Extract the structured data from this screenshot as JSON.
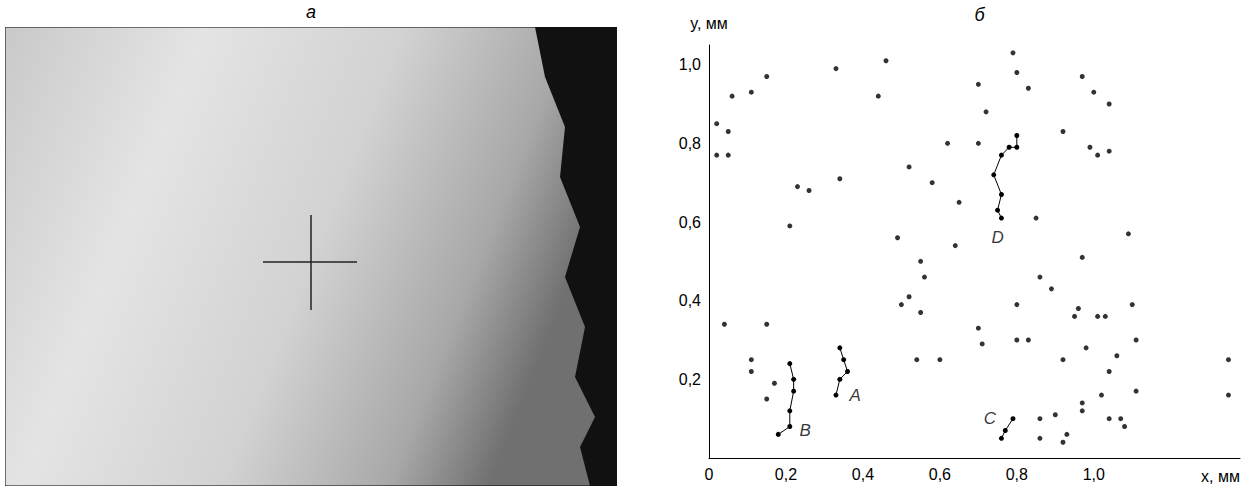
{
  "photo": {
    "title": "а"
  },
  "chart_data": {
    "type": "scatter",
    "title": "б",
    "xlabel": "x, мм",
    "ylabel": "y, мм",
    "xlim": [
      0,
      1.38
    ],
    "ylim": [
      0,
      1.05
    ],
    "xticks": [
      0,
      {
        "value": 0.2,
        "label": "0,2"
      },
      {
        "value": 0.4,
        "label": "0,4"
      },
      {
        "value": 0.6,
        "label": "0,6"
      },
      {
        "value": 0.8,
        "label": "0,8"
      },
      {
        "value": 1.0,
        "label": "1,0"
      }
    ],
    "yticks": [
      {
        "value": 0.2,
        "label": "0,2"
      },
      {
        "value": 0.4,
        "label": "0,4"
      },
      {
        "value": 0.6,
        "label": "0,6"
      },
      {
        "value": 0.8,
        "label": "0,8"
      },
      {
        "value": 1.0,
        "label": "1,0"
      }
    ],
    "grid": false,
    "color": "#000000",
    "marker": "circle",
    "points": [
      [
        0.02,
        0.85
      ],
      [
        0.06,
        0.92
      ],
      [
        0.05,
        0.83
      ],
      [
        0.02,
        0.77
      ],
      [
        0.05,
        0.77
      ],
      [
        0.11,
        0.93
      ],
      [
        0.15,
        0.97
      ],
      [
        0.33,
        0.99
      ],
      [
        0.44,
        0.92
      ],
      [
        0.46,
        1.01
      ],
      [
        0.34,
        0.71
      ],
      [
        0.23,
        0.69
      ],
      [
        0.26,
        0.68
      ],
      [
        0.21,
        0.59
      ],
      [
        0.04,
        0.34
      ],
      [
        0.15,
        0.34
      ],
      [
        0.11,
        0.25
      ],
      [
        0.11,
        0.22
      ],
      [
        0.17,
        0.19
      ],
      [
        0.15,
        0.15
      ],
      [
        0.49,
        0.56
      ],
      [
        0.52,
        0.74
      ],
      [
        0.58,
        0.7
      ],
      [
        0.62,
        0.8
      ],
      [
        0.65,
        0.65
      ],
      [
        0.64,
        0.54
      ],
      [
        0.55,
        0.5
      ],
      [
        0.56,
        0.46
      ],
      [
        0.52,
        0.41
      ],
      [
        0.5,
        0.39
      ],
      [
        0.55,
        0.37
      ],
      [
        0.54,
        0.25
      ],
      [
        0.6,
        0.25
      ],
      [
        0.7,
        0.33
      ],
      [
        0.71,
        0.29
      ],
      [
        0.7,
        0.95
      ],
      [
        0.72,
        0.88
      ],
      [
        0.7,
        0.8
      ],
      [
        0.79,
        1.03
      ],
      [
        0.8,
        0.98
      ],
      [
        0.83,
        0.94
      ],
      [
        0.85,
        0.61
      ],
      [
        0.86,
        0.46
      ],
      [
        0.89,
        0.43
      ],
      [
        0.8,
        0.39
      ],
      [
        0.8,
        0.3
      ],
      [
        0.83,
        0.3
      ],
      [
        0.92,
        0.83
      ],
      [
        0.97,
        0.97
      ],
      [
        1.0,
        0.93
      ],
      [
        1.04,
        0.9
      ],
      [
        0.99,
        0.79
      ],
      [
        1.01,
        0.77
      ],
      [
        1.04,
        0.78
      ],
      [
        0.97,
        0.51
      ],
      [
        1.09,
        0.57
      ],
      [
        0.96,
        0.38
      ],
      [
        0.95,
        0.36
      ],
      [
        0.98,
        0.28
      ],
      [
        1.01,
        0.36
      ],
      [
        1.03,
        0.36
      ],
      [
        1.06,
        0.26
      ],
      [
        1.04,
        0.22
      ],
      [
        1.1,
        0.39
      ],
      [
        1.11,
        0.3
      ],
      [
        0.92,
        0.25
      ],
      [
        0.97,
        0.14
      ],
      [
        0.97,
        0.12
      ],
      [
        1.02,
        0.16
      ],
      [
        1.04,
        0.1
      ],
      [
        1.07,
        0.1
      ],
      [
        1.08,
        0.08
      ],
      [
        1.11,
        0.17
      ],
      [
        0.86,
        0.1
      ],
      [
        0.9,
        0.11
      ],
      [
        0.86,
        0.05
      ],
      [
        0.92,
        0.04
      ],
      [
        0.93,
        0.06
      ],
      [
        1.35,
        0.25
      ],
      [
        1.35,
        0.16
      ]
    ],
    "series": [
      {
        "type": "line",
        "marker": "circle",
        "values": [
          [
            0.33,
            0.16
          ],
          [
            0.34,
            0.2
          ],
          [
            0.36,
            0.22
          ],
          [
            0.35,
            0.25
          ],
          [
            0.34,
            0.28
          ]
        ]
      },
      {
        "type": "line",
        "marker": "circle",
        "values": [
          [
            0.18,
            0.06
          ],
          [
            0.21,
            0.08
          ],
          [
            0.21,
            0.12
          ],
          [
            0.22,
            0.17
          ],
          [
            0.22,
            0.2
          ],
          [
            0.21,
            0.24
          ]
        ]
      },
      {
        "type": "line",
        "marker": "circle",
        "values": [
          [
            0.76,
            0.05
          ],
          [
            0.77,
            0.07
          ],
          [
            0.79,
            0.1
          ]
        ]
      },
      {
        "type": "line",
        "marker": "circle",
        "values": [
          [
            0.76,
            0.61
          ],
          [
            0.75,
            0.63
          ],
          [
            0.76,
            0.67
          ],
          [
            0.74,
            0.72
          ],
          [
            0.76,
            0.77
          ],
          [
            0.78,
            0.79
          ],
          [
            0.8,
            0.79
          ],
          [
            0.8,
            0.82
          ]
        ]
      }
    ],
    "annotations": [
      {
        "text": "A",
        "x": 0.38,
        "y": 0.16
      },
      {
        "text": "B",
        "x": 0.25,
        "y": 0.07
      },
      {
        "text": "C",
        "x": 0.73,
        "y": 0.1
      },
      {
        "text": "D",
        "x": 0.75,
        "y": 0.56
      }
    ]
  }
}
